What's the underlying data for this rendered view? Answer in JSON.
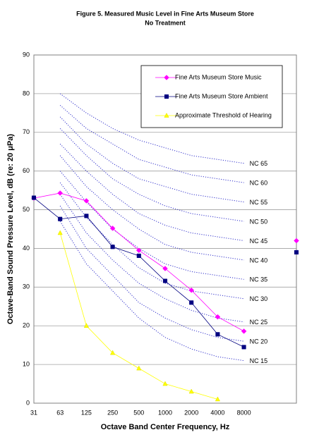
{
  "chart_data": {
    "type": "line",
    "title": "Figure 5. Measured Music Level in Fine Arts Museum Store",
    "subtitle": "No Treatment",
    "x_label": "Octave Band Center Frequency, Hz",
    "y_label": "Octave-Band Sound Pressure Level, dB (re: 20 μPa)",
    "categories": [
      "31",
      "63",
      "125",
      "250",
      "500",
      "1000",
      "2000",
      "4000",
      "8000",
      null,
      null
    ],
    "ylim": [
      0,
      90
    ],
    "yticks": [
      0,
      10,
      20,
      30,
      40,
      50,
      60,
      70,
      80,
      90
    ],
    "grid": true,
    "series": [
      {
        "name": "Fine Arts Museum Store Music",
        "color": "#ff00ff",
        "marker": "diamond",
        "values": [
          53,
          54.3,
          52.3,
          45.2,
          39.5,
          34.8,
          29.2,
          22.3,
          18.6,
          null,
          42
        ]
      },
      {
        "name": "Fine Arts Museum Store Ambient",
        "color": "#000080",
        "marker": "square",
        "values": [
          53.1,
          47.6,
          48.4,
          40.4,
          38.1,
          31.6,
          26,
          17.8,
          14.5,
          null,
          39
        ]
      },
      {
        "name": "Approximate Threshold of Hearing",
        "color": "#ffff00",
        "marker": "triangle",
        "values": [
          null,
          44,
          20,
          13,
          9,
          5,
          3,
          1,
          null,
          null,
          null
        ]
      }
    ],
    "nc_color": "#3333cc",
    "nc_curves": [
      {
        "name": "NC 65",
        "values": [
          null,
          80,
          75,
          71,
          68,
          66,
          64,
          63,
          62,
          null,
          null
        ]
      },
      {
        "name": "NC 60",
        "values": [
          null,
          77,
          71,
          67,
          63,
          61,
          59,
          58,
          57,
          null,
          null
        ]
      },
      {
        "name": "NC 55",
        "values": [
          null,
          74,
          67,
          62,
          58,
          56,
          54,
          53,
          52,
          null,
          null
        ]
      },
      {
        "name": "NC 50",
        "values": [
          null,
          71,
          64,
          58,
          54,
          51,
          49,
          48,
          47,
          null,
          null
        ]
      },
      {
        "name": "NC 45",
        "values": [
          null,
          67,
          60,
          54,
          49,
          46,
          44,
          43,
          42,
          null,
          null
        ]
      },
      {
        "name": "NC 40",
        "values": [
          null,
          64,
          56,
          50,
          45,
          41,
          39,
          38,
          37,
          null,
          null
        ]
      },
      {
        "name": "NC 35",
        "values": [
          null,
          60,
          52,
          45,
          40,
          36,
          34,
          33,
          32,
          null,
          null
        ]
      },
      {
        "name": "NC 30",
        "values": [
          null,
          57,
          48,
          41,
          35,
          31,
          29,
          28,
          27,
          null,
          null
        ]
      },
      {
        "name": "NC 25",
        "values": [
          null,
          54,
          44,
          37,
          31,
          27,
          24,
          22,
          21,
          null,
          null
        ]
      },
      {
        "name": "NC 20",
        "values": [
          null,
          51,
          40,
          33,
          26,
          22,
          19,
          17,
          16,
          null,
          null
        ]
      },
      {
        "name": "NC 15",
        "values": [
          null,
          47,
          36,
          29,
          22,
          17,
          14,
          12,
          11,
          null,
          null
        ]
      }
    ]
  }
}
